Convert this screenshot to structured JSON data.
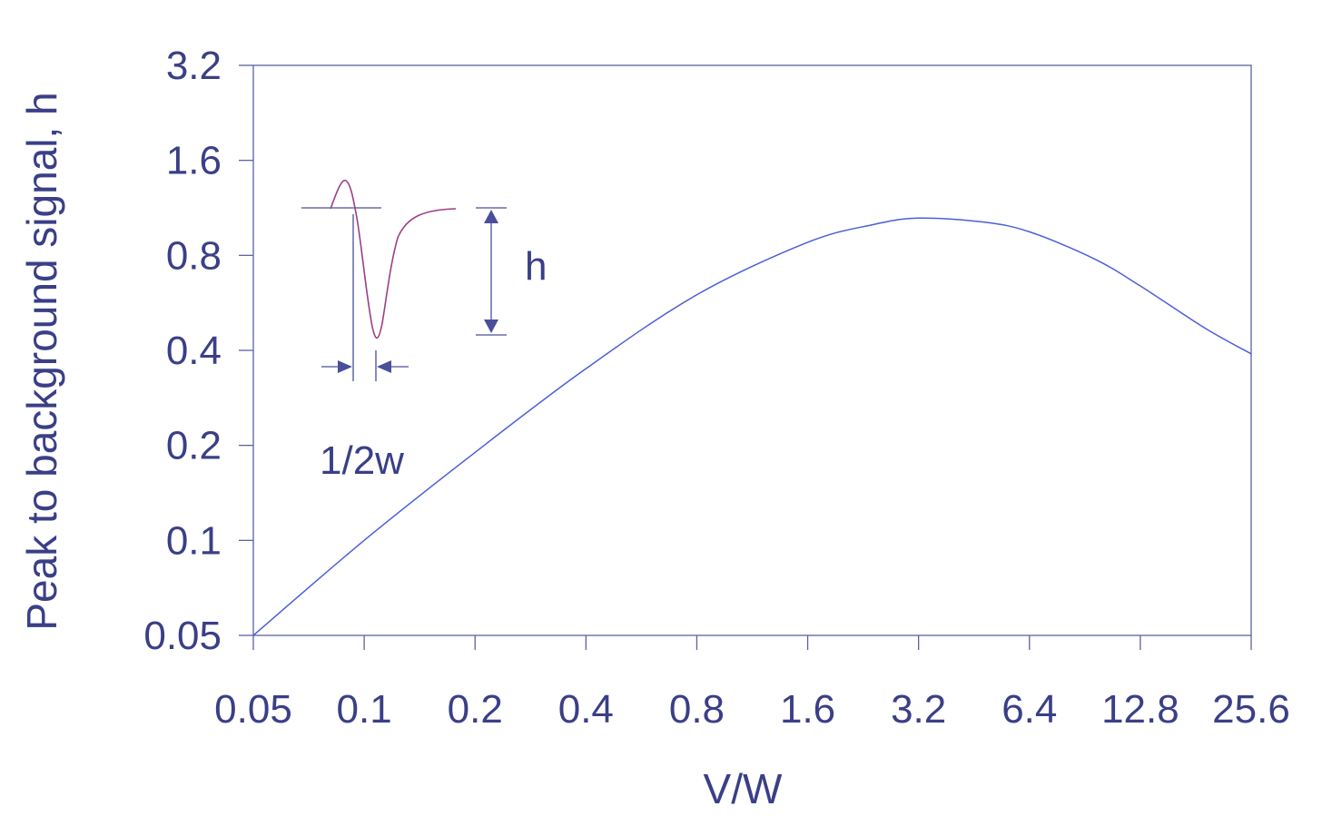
{
  "chart_data": {
    "type": "line",
    "xlabel": "V/W",
    "ylabel": "Peak to background signal, h",
    "x_scale": "log2",
    "y_scale": "log2",
    "xlim": [
      0.05,
      25.6
    ],
    "ylim": [
      0.05,
      3.2
    ],
    "x_ticks": [
      "0.05",
      "0.1",
      "0.2",
      "0.4",
      "0.8",
      "1.6",
      "3.2",
      "6.4",
      "12.8",
      "25.6"
    ],
    "y_ticks": [
      "0.05",
      "0.1",
      "0.2",
      "0.4",
      "0.8",
      "1.6",
      "3.2"
    ],
    "grid": false,
    "series": [
      {
        "color": "#4a5fd8",
        "x": [
          0.05,
          0.1,
          0.2,
          0.4,
          0.8,
          1.6,
          2.4,
          3.2,
          4.8,
          6.4,
          9.6,
          12.8,
          19.2,
          25.6
        ],
        "y": [
          0.05,
          0.1,
          0.19,
          0.35,
          0.6,
          0.88,
          1.0,
          1.05,
          1.02,
          0.95,
          0.78,
          0.64,
          0.47,
          0.39
        ]
      }
    ],
    "inset": {
      "height_label": "h",
      "width_label": "1/2w"
    }
  },
  "colors": {
    "axis": "#5c62a0",
    "text": "#3a3f87",
    "curve": "#4a5fd8",
    "inset_curve": "#9b3f86",
    "inset_annot": "#4a4f9a"
  }
}
